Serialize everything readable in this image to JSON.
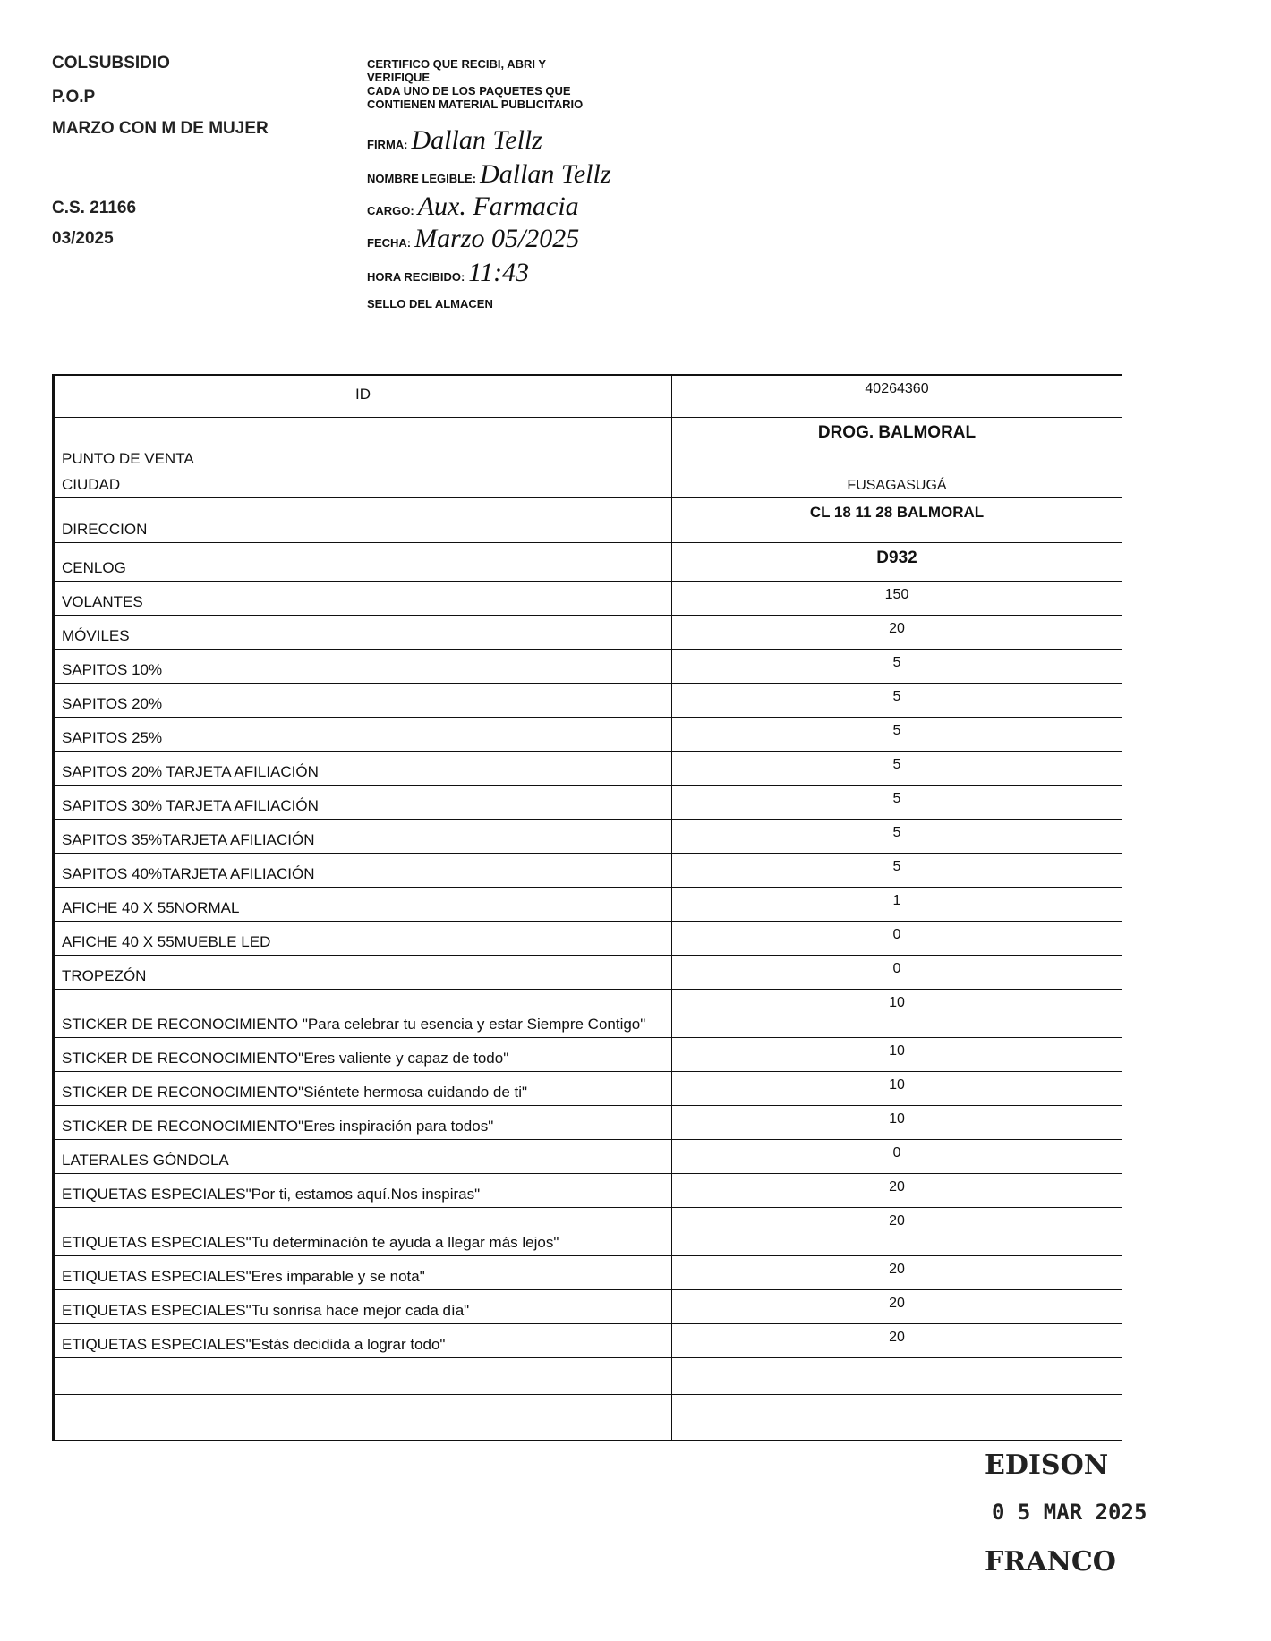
{
  "header": {
    "lines": [
      "COLSUBSIDIO",
      "P.O.P",
      "MARZO CON M DE MUJER",
      "C.S. 21166",
      "03/2025"
    ]
  },
  "certificate": {
    "statement": [
      "CERTIFICO QUE RECIBI, ABRI Y",
      "VERIFIQUE",
      "CADA  UNO DE LOS PAQUETES QUE",
      "CONTIENEN MATERIAL PUBLICITARIO"
    ],
    "fields": [
      {
        "label": "FIRMA:",
        "value": "Dallan Tellz"
      },
      {
        "label": "NOMBRE LEGIBLE:",
        "value": "Dallan Tellz"
      },
      {
        "label": "CARGO:",
        "value": "Aux. Farmacia"
      },
      {
        "label": "FECHA:",
        "value": "Marzo 05/2025"
      },
      {
        "label": "HORA RECIBIDO:",
        "value": "11:43"
      },
      {
        "label": "SELLO DEL ALMACEN"
      }
    ]
  },
  "table": {
    "rows": [
      [
        "ID",
        "40264360"
      ],
      [
        "PUNTO DE VENTA",
        "DROG. BALMORAL"
      ],
      [
        "CIUDAD",
        "FUSAGASUGÁ"
      ],
      [
        "DIRECCION",
        "CL 18 11 28 BALMORAL"
      ],
      [
        "CENLOG",
        "D932"
      ],
      [
        "VOLANTES",
        "150"
      ],
      [
        "MÓVILES",
        "20"
      ],
      [
        "SAPITOS 10%",
        "5"
      ],
      [
        "SAPITOS 20%",
        "5"
      ],
      [
        "SAPITOS 25%",
        "5"
      ],
      [
        "SAPITOS 20% TARJETA AFILIACIÓN",
        "5"
      ],
      [
        "SAPITOS 30% TARJETA AFILIACIÓN",
        "5"
      ],
      [
        "SAPITOS 35%TARJETA AFILIACIÓN",
        "5"
      ],
      [
        "SAPITOS 40%TARJETA AFILIACIÓN",
        "5"
      ],
      [
        "AFICHE 40 X 55NORMAL",
        "1"
      ],
      [
        "AFICHE 40 X 55MUEBLE LED",
        "0"
      ],
      [
        "TROPEZÓN",
        "0"
      ],
      [
        "STICKER DE RECONOCIMIENTO \"Para celebrar tu esencia y estar Siempre Contigo\"",
        "10"
      ],
      [
        "STICKER DE RECONOCIMIENTO\"Eres valiente y capaz de todo\"",
        "10"
      ],
      [
        "STICKER DE RECONOCIMIENTO\"Siéntete hermosa cuidando de ti\"",
        "10"
      ],
      [
        "STICKER DE RECONOCIMIENTO\"Eres inspiración para todos\"",
        "10"
      ],
      [
        "LATERALES GÓNDOLA",
        "0"
      ],
      [
        "ETIQUETAS ESPECIALES\"Por ti, estamos aquí.Nos inspiras\"",
        "20"
      ],
      [
        "ETIQUETAS ESPECIALES\"Tu determinación te ayuda a llegar más lejos\"",
        "20"
      ],
      [
        "ETIQUETAS ESPECIALES\"Eres imparable y se nota\"",
        "20"
      ],
      [
        "ETIQUETAS ESPECIALES\"Tu sonrisa hace mejor cada día\"",
        "20"
      ],
      [
        "ETIQUETAS ESPECIALES\"Estás decidida a lograr todo\"",
        "20"
      ]
    ]
  },
  "stamp": {
    "lines": [
      "EDISON",
      "0 5 MAR 2025",
      "FRANCO"
    ]
  }
}
